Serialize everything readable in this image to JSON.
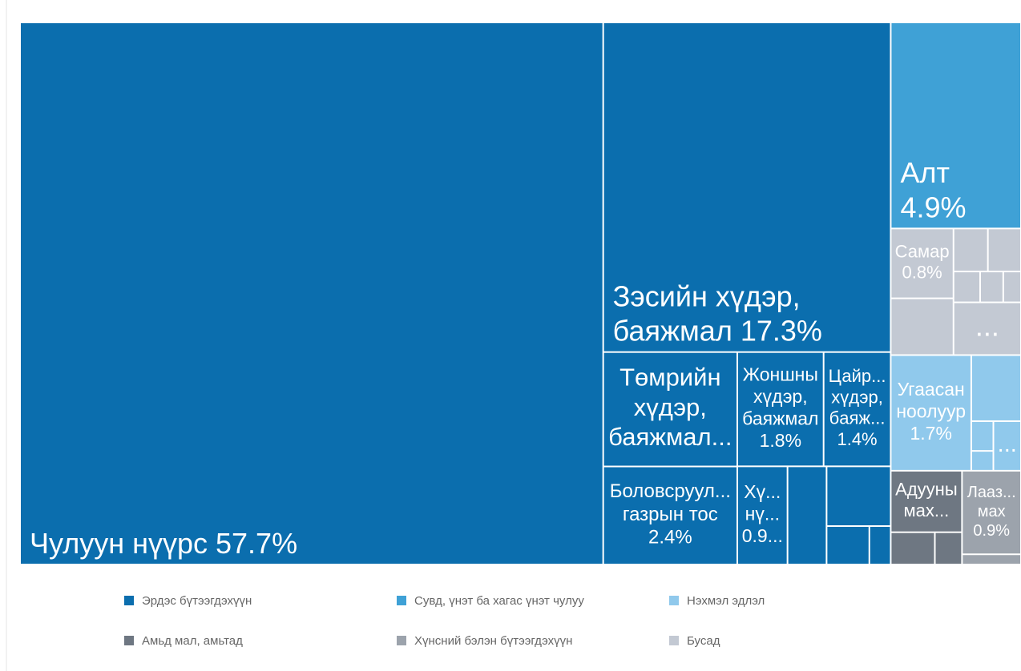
{
  "chart_data": {
    "type": "treemap",
    "series": [
      {
        "name": "Эрдэс бүтээгдэхүүн",
        "color": "#0b6eae",
        "categories": [
          "Чулуун нүүрс",
          "Зэсийн хүдэр, баяжмал",
          "Төмрийн хүдэр, баяжмал...",
          "Боловсруул... газрын тос",
          "Жоншны хүдэр, баяжмал",
          "Цайр... хүдэр, бaяж...",
          "Хү... нү...",
          null,
          null,
          null,
          null
        ],
        "values": [
          57.7,
          17.3,
          2.8,
          2.4,
          1.8,
          1.4,
          0.9,
          0.7,
          0.7,
          0.3,
          0.15
        ],
        "value_labels": [
          "57.7%",
          "17.3%",
          null,
          "2.4%",
          "1.8%",
          "1.4%",
          "0.9...",
          null,
          null,
          null,
          null
        ]
      },
      {
        "name": "Сувд, үнэт ба хагас үнэт чулуу",
        "color": "#3fa1d6",
        "categories": [
          "Алт"
        ],
        "values": [
          4.9
        ],
        "value_labels": [
          "4.9%"
        ]
      },
      {
        "name": "Нэхмэл эдлэл",
        "color": "#90c9ec",
        "categories": [
          "Угаасан ноолуур",
          null,
          null,
          null,
          "..."
        ],
        "values": [
          1.7,
          0.6,
          0.12,
          0.08,
          0.25
        ],
        "value_labels": [
          "1.7%",
          null,
          null,
          null,
          null
        ]
      },
      {
        "name": "Амьд мал, амьтад",
        "color": "#6e7782",
        "categories": [
          "Адууны мах...",
          null,
          null
        ],
        "values": [
          0.8,
          0.26,
          0.16
        ],
        "value_labels": [
          null,
          null,
          null
        ]
      },
      {
        "name": "Хүнсний бэлэн бүтээгдэхүүн",
        "color": "#9ca3ac",
        "categories": [
          "Лааз... мах",
          null
        ],
        "values": [
          0.9,
          0.11
        ],
        "value_labels": [
          "0.9%",
          null
        ]
      },
      {
        "name": "Бусад",
        "color": "#c3c9d3",
        "categories": [
          "Самар",
          null,
          null,
          null,
          null,
          null,
          null,
          "..."
        ],
        "values": [
          0.8,
          0.65,
          0.27,
          0.26,
          0.15,
          0.13,
          0.1,
          0.65
        ],
        "value_labels": [
          "0.8%",
          null,
          null,
          null,
          null,
          null,
          null,
          null
        ]
      }
    ],
    "legend": "bottom"
  }
}
